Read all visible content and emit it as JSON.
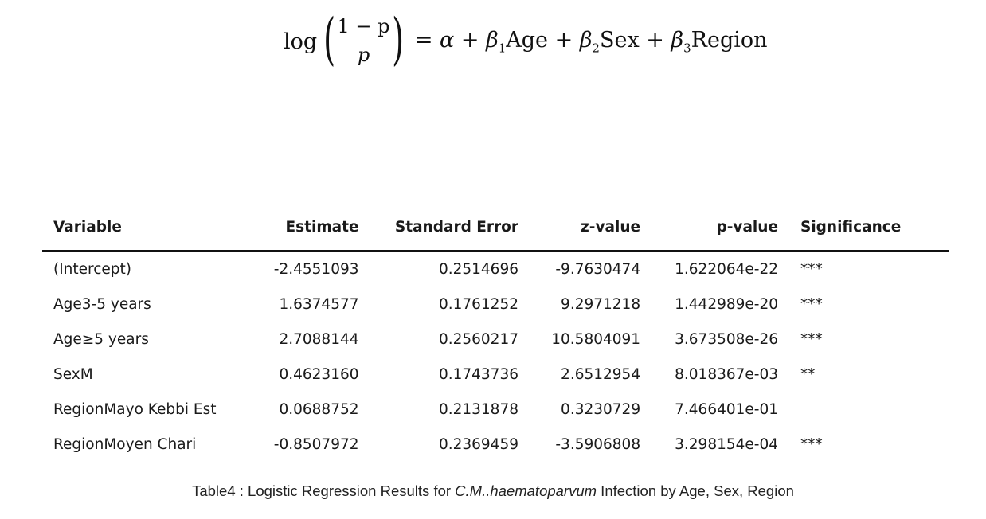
{
  "equation": {
    "log": "log",
    "numerator": "1 − p",
    "denominator": "p",
    "equals": "=",
    "alpha": "α",
    "plus": "+",
    "beta": "β",
    "sub1": "1",
    "sub2": "2",
    "sub3": "3",
    "term1": "Age",
    "term2": "Sex",
    "term3": "Region"
  },
  "table": {
    "headers": [
      "Variable",
      "Estimate",
      "Standard Error",
      "z-value",
      "p-value",
      "Significance"
    ],
    "rows": [
      [
        "(Intercept)",
        "-2.4551093",
        "0.2514696",
        "-9.7630474",
        "1.622064e-22",
        "***"
      ],
      [
        "Age3-5 years",
        "1.6374577",
        "0.1761252",
        "9.2971218",
        "1.442989e-20",
        "***"
      ],
      [
        "Age≥5 years",
        "2.7088144",
        "0.2560217",
        "10.5804091",
        "3.673508e-26",
        "***"
      ],
      [
        "SexM",
        "0.4623160",
        "0.1743736",
        "2.6512954",
        "8.018367e-03",
        "**"
      ],
      [
        "RegionMayo Kebbi Est",
        "0.0688752",
        "0.2131878",
        "0.3230729",
        "7.466401e-01",
        ""
      ],
      [
        "RegionMoyen Chari",
        "-0.8507972",
        "0.2369459",
        "-3.5906808",
        "3.298154e-04",
        "***"
      ]
    ]
  },
  "caption": {
    "prefix": "Table4 : Logistic Regression Results for ",
    "species": "C.M..haematoparvum",
    "suffix": " Infection by Age, Sex, Region"
  }
}
